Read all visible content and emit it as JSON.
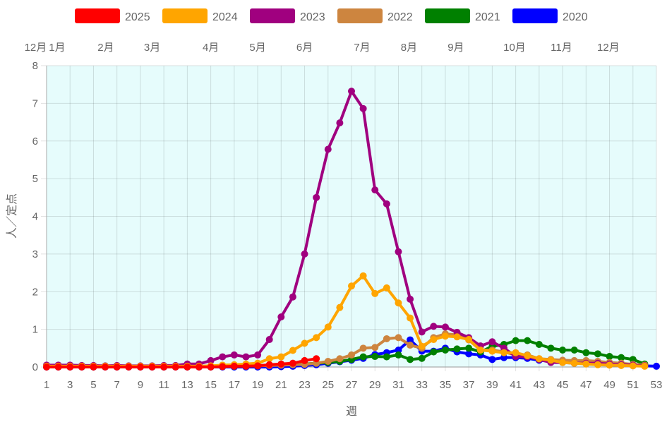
{
  "chart_data": {
    "type": "line",
    "xlabel": "週",
    "ylabel": "人／定点",
    "ylim": [
      0,
      8
    ],
    "yticks": [
      0,
      1,
      2,
      3,
      4,
      5,
      6,
      7,
      8
    ],
    "xlim": [
      1,
      53
    ],
    "xticks": [
      1,
      3,
      5,
      7,
      9,
      11,
      13,
      15,
      17,
      19,
      21,
      23,
      25,
      27,
      29,
      31,
      33,
      35,
      37,
      39,
      41,
      43,
      45,
      47,
      49,
      51,
      53
    ],
    "grid": true,
    "legend_placement": "top",
    "background": "#e6fcfc",
    "month_labels": [
      {
        "label": "12月",
        "week": 0.8
      },
      {
        "label": "1月",
        "week": 1.9
      },
      {
        "label": "2月",
        "week": 6.05
      },
      {
        "label": "3月",
        "week": 10
      },
      {
        "label": "4月",
        "week": 15
      },
      {
        "label": "5月",
        "week": 19
      },
      {
        "label": "6月",
        "week": 23
      },
      {
        "label": "7月",
        "week": 27.9
      },
      {
        "label": "8月",
        "week": 31.9
      },
      {
        "label": "9月",
        "week": 35.9
      },
      {
        "label": "10月",
        "week": 40.9
      },
      {
        "label": "11月",
        "week": 44.9
      },
      {
        "label": "12月",
        "week": 48.9
      }
    ],
    "series": [
      {
        "name": "2025",
        "color": "#ff0000",
        "values": [
          0,
          0,
          0,
          0,
          0,
          0,
          0,
          0,
          0,
          0,
          0,
          0,
          0,
          0,
          0,
          0.01,
          0.02,
          0.02,
          0.03,
          0.06,
          0.08,
          0.1,
          0.17,
          0.22
        ]
      },
      {
        "name": "2024",
        "color": "#ffa500",
        "values": [
          0.02,
          0.02,
          0.02,
          0.02,
          0.02,
          0.02,
          0.02,
          0.02,
          0.02,
          0.02,
          0.02,
          0.02,
          0.02,
          0.02,
          0.03,
          0.05,
          0.06,
          0.08,
          0.1,
          0.22,
          0.27,
          0.44,
          0.63,
          0.78,
          1.06,
          1.58,
          2.15,
          2.42,
          1.95,
          2.1,
          1.7,
          1.3,
          0.55,
          0.73,
          0.82,
          0.8,
          0.73,
          0.45,
          0.42,
          0.38,
          0.38,
          0.3,
          0.22,
          0.18,
          0.12,
          0.1,
          0.08,
          0.06,
          0.05,
          0.04,
          0.03,
          0.02
        ]
      },
      {
        "name": "2023",
        "color": "#a0007f",
        "values": [
          0.05,
          0.05,
          0.05,
          0.04,
          0.04,
          0.03,
          0.04,
          0.03,
          0.03,
          0.03,
          0.04,
          0.04,
          0.08,
          0.08,
          0.17,
          0.27,
          0.32,
          0.27,
          0.32,
          0.73,
          1.33,
          1.86,
          3.0,
          4.5,
          5.78,
          6.48,
          7.32,
          6.86,
          4.7,
          4.33,
          3.06,
          1.8,
          0.93,
          1.08,
          1.06,
          0.92,
          0.78,
          0.56,
          0.67,
          0.5,
          0.28,
          0.27,
          0.2,
          0.12,
          0.12,
          0.1,
          0.1,
          0.1,
          0.08,
          0.06,
          0.05,
          0.03
        ]
      },
      {
        "name": "2022",
        "color": "#cd853f",
        "values": [
          0.03,
          0.03,
          0.03,
          0.03,
          0.03,
          0.02,
          0.02,
          0.02,
          0.02,
          0.02,
          0.02,
          0.02,
          0.02,
          0.02,
          0.02,
          0.02,
          0.03,
          0.03,
          0.03,
          0.04,
          0.05,
          0.06,
          0.07,
          0.1,
          0.15,
          0.22,
          0.32,
          0.5,
          0.52,
          0.75,
          0.78,
          0.58,
          0.5,
          0.78,
          0.88,
          0.85,
          0.72,
          0.45,
          0.45,
          0.4,
          0.32,
          0.32,
          0.22,
          0.2,
          0.18,
          0.17,
          0.17,
          0.15,
          0.12,
          0.1,
          0.07,
          0.05
        ]
      },
      {
        "name": "2021",
        "color": "#008000",
        "values": [
          0.01,
          0.01,
          0.01,
          0.01,
          0.01,
          0.01,
          0.01,
          0.01,
          0.01,
          0.01,
          0.01,
          0.01,
          0.01,
          0.01,
          0.01,
          0.02,
          0.02,
          0.03,
          0.04,
          0.05,
          0.06,
          0.07,
          0.08,
          0.1,
          0.12,
          0.15,
          0.2,
          0.27,
          0.28,
          0.27,
          0.32,
          0.2,
          0.23,
          0.4,
          0.45,
          0.48,
          0.5,
          0.4,
          0.55,
          0.6,
          0.7,
          0.7,
          0.6,
          0.5,
          0.45,
          0.45,
          0.38,
          0.35,
          0.28,
          0.25,
          0.2,
          0.08
        ]
      },
      {
        "name": "2020",
        "color": "#0000ff",
        "values": [
          0,
          0,
          0,
          0,
          0,
          0,
          0,
          0,
          0,
          0,
          0,
          0,
          0,
          0,
          0,
          0,
          0,
          0,
          0,
          0,
          0.01,
          0.02,
          0.04,
          0.06,
          0.1,
          0.14,
          0.18,
          0.23,
          0.33,
          0.38,
          0.45,
          0.72,
          0.42,
          0.42,
          0.5,
          0.4,
          0.35,
          0.32,
          0.2,
          0.25,
          0.25,
          0.23,
          0.18,
          0.15,
          0.13,
          0.12,
          0.1,
          0.08,
          0.06,
          0.05,
          0.04,
          0.03,
          0.02
        ]
      }
    ]
  }
}
